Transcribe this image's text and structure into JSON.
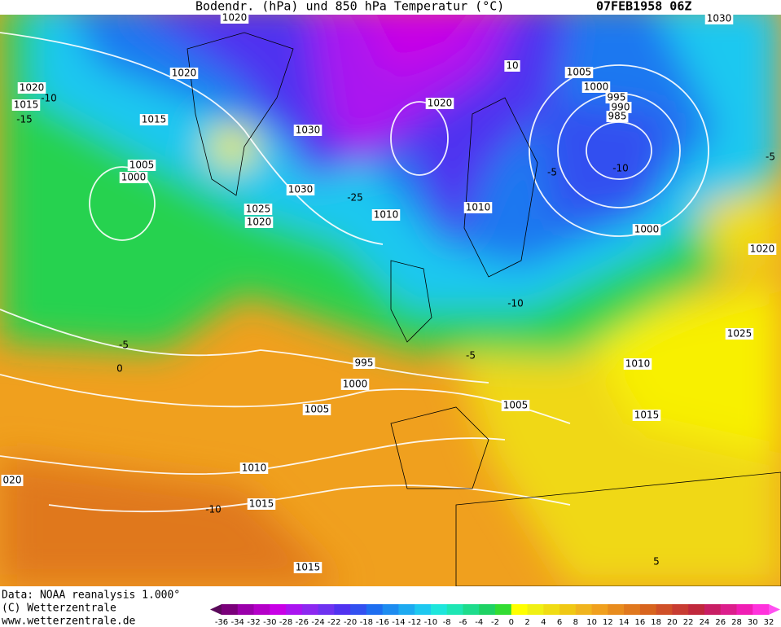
{
  "header": {
    "title": "Bodendr. (hPa) und 850 hPa Temperatur (°C)",
    "date": "07FEB1958 06Z"
  },
  "isobar_labels": [
    "1020",
    "1020",
    "1015",
    "1020",
    "1015",
    "1005",
    "1000",
    "1030",
    "1030",
    "1025",
    "1020",
    "1010",
    "1020",
    "10",
    "1005",
    "1000",
    "995",
    "990",
    "985",
    "1010",
    "1000",
    "1020",
    "1025",
    "1010",
    "995",
    "1000",
    "1005",
    "1005",
    "1015",
    "1010",
    "1015",
    "1015",
    "020",
    "1030"
  ],
  "isotherm_labels": [
    "-10",
    "-15",
    "-25",
    "-10",
    "-5",
    "-5",
    "0",
    "-10",
    "-5",
    "-10",
    "5",
    "-5"
  ],
  "footer": {
    "source": "Data: NOAA reanalysis 1.000°",
    "copyright": "(C) Wetterzentrale",
    "url": "www.wetterzentrale.de"
  },
  "colorbar": {
    "ticks": [
      -36,
      -34,
      -32,
      -30,
      -28,
      -26,
      -24,
      -22,
      -20,
      -18,
      -16,
      -14,
      -12,
      -10,
      -8,
      -6,
      -4,
      -2,
      0,
      2,
      4,
      6,
      8,
      10,
      12,
      14,
      16,
      18,
      20,
      22,
      24,
      26,
      28,
      30,
      32
    ],
    "colors": [
      "#5a0a5a",
      "#7a007a",
      "#9a00aa",
      "#b400c8",
      "#c800e6",
      "#aa14f0",
      "#8c28f0",
      "#6e32f0",
      "#5032f0",
      "#3250f0",
      "#1e6ef0",
      "#1e8cf0",
      "#1eaaf0",
      "#1ec8f0",
      "#1ee6dc",
      "#1ee6b4",
      "#1edc8c",
      "#1ed264",
      "#32dc32",
      "#ffff00",
      "#f0f014",
      "#f0dc14",
      "#f0c814",
      "#f0b41e",
      "#f0a01e",
      "#e88c1e",
      "#e0781e",
      "#d8641e",
      "#d05028",
      "#c83c32",
      "#c0283c",
      "#c81e64",
      "#dc1e8c",
      "#f01eb4",
      "#ff32dc",
      "#ff50f0"
    ]
  }
}
